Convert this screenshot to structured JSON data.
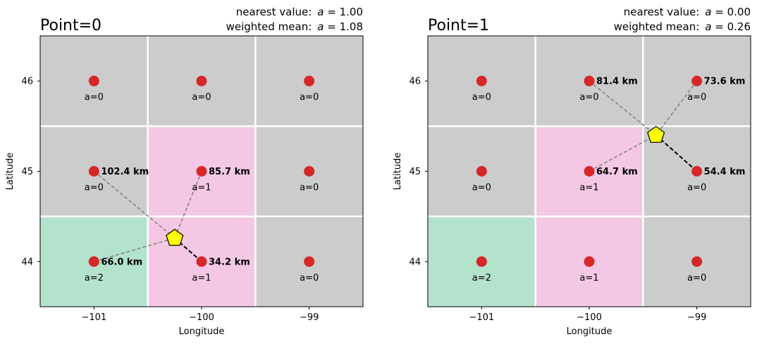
{
  "chart_data": [
    {
      "type": "heatmap",
      "title": "Point=0",
      "stats": [
        {
          "label": "nearest value:",
          "var": "a",
          "value": "1.00"
        },
        {
          "label": "weighted mean:",
          "var": "a",
          "value": "1.08"
        }
      ],
      "xlabel": "Longitude",
      "ylabel": "Latitude",
      "xlim": [
        -101.5,
        -98.5
      ],
      "ylim": [
        43.5,
        46.5
      ],
      "xticks": [
        -101,
        -100,
        -99
      ],
      "xtick_labels": [
        "−101",
        "−100",
        "−99"
      ],
      "yticks": [
        44,
        45,
        46
      ],
      "ytick_labels": [
        "44",
        "45",
        "46"
      ],
      "grid_points": [
        {
          "lon": -101,
          "lat": 46,
          "label": "a=0",
          "a": 0
        },
        {
          "lon": -100,
          "lat": 46,
          "label": "a=0",
          "a": 0
        },
        {
          "lon": -99,
          "lat": 46,
          "label": "a=0",
          "a": 0
        },
        {
          "lon": -101,
          "lat": 45,
          "label": "a=0",
          "a": 0
        },
        {
          "lon": -100,
          "lat": 45,
          "label": "a=1",
          "a": 1
        },
        {
          "lon": -99,
          "lat": 45,
          "label": "a=0",
          "a": 0
        },
        {
          "lon": -101,
          "lat": 44,
          "label": "a=2",
          "a": 2
        },
        {
          "lon": -100,
          "lat": 44,
          "label": "a=1",
          "a": 1
        },
        {
          "lon": -99,
          "lat": 44,
          "label": "a=0",
          "a": 0
        }
      ],
      "query_point": {
        "lon": -100.25,
        "lat": 44.26
      },
      "neighbors": [
        {
          "lon": -101,
          "lat": 45,
          "distance": "102.4 km",
          "nearest": false
        },
        {
          "lon": -100,
          "lat": 45,
          "distance": "85.7 km",
          "nearest": false
        },
        {
          "lon": -101,
          "lat": 44,
          "distance": "66.0 km",
          "nearest": false
        },
        {
          "lon": -100,
          "lat": 44,
          "distance": "34.2 km",
          "nearest": true
        }
      ]
    },
    {
      "type": "heatmap",
      "title": "Point=1",
      "stats": [
        {
          "label": "nearest value:",
          "var": "a",
          "value": "0.00"
        },
        {
          "label": "weighted mean:",
          "var": "a",
          "value": "0.26"
        }
      ],
      "xlabel": "Longitude",
      "ylabel": "Latitude",
      "xlim": [
        -101.5,
        -98.5
      ],
      "ylim": [
        43.5,
        46.5
      ],
      "xticks": [
        -101,
        -100,
        -99
      ],
      "xtick_labels": [
        "−101",
        "−100",
        "−99"
      ],
      "yticks": [
        44,
        45,
        46
      ],
      "ytick_labels": [
        "44",
        "45",
        "46"
      ],
      "grid_points": [
        {
          "lon": -101,
          "lat": 46,
          "label": "a=0",
          "a": 0
        },
        {
          "lon": -100,
          "lat": 46,
          "label": "a=0",
          "a": 0
        },
        {
          "lon": -99,
          "lat": 46,
          "label": "a=0",
          "a": 0
        },
        {
          "lon": -101,
          "lat": 45,
          "label": "a=0",
          "a": 0
        },
        {
          "lon": -100,
          "lat": 45,
          "label": "a=1",
          "a": 1
        },
        {
          "lon": -99,
          "lat": 45,
          "label": "a=0",
          "a": 0
        },
        {
          "lon": -101,
          "lat": 44,
          "label": "a=2",
          "a": 2
        },
        {
          "lon": -100,
          "lat": 44,
          "label": "a=1",
          "a": 1
        },
        {
          "lon": -99,
          "lat": 44,
          "label": "a=0",
          "a": 0
        }
      ],
      "query_point": {
        "lon": -99.38,
        "lat": 45.4
      },
      "neighbors": [
        {
          "lon": -100,
          "lat": 46,
          "distance": "81.4 km",
          "nearest": false
        },
        {
          "lon": -99,
          "lat": 46,
          "distance": "73.6 km",
          "nearest": false
        },
        {
          "lon": -100,
          "lat": 45,
          "distance": "64.7 km",
          "nearest": false
        },
        {
          "lon": -99,
          "lat": 45,
          "distance": "54.4 km",
          "nearest": true
        }
      ]
    }
  ],
  "colors": {
    "a0": "#cccccc",
    "a1": "#f4c8e4",
    "a2": "#b3e2cd",
    "point": "#d62728",
    "query": "#ffff00",
    "link": "#808080",
    "nearest_link": "#000000"
  }
}
